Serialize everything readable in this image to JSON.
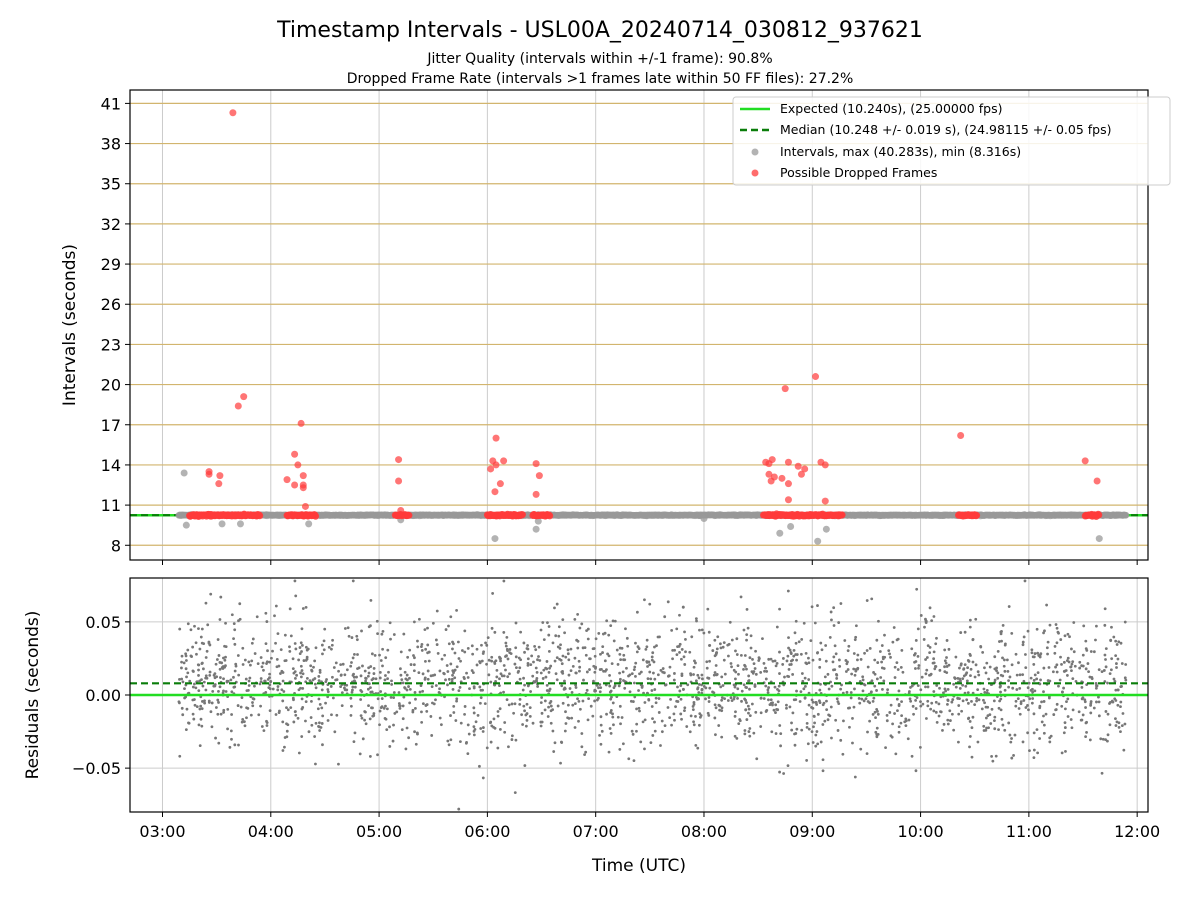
{
  "chart_data": [
    {
      "type": "scatter",
      "title": "Timestamp Intervals - USL00A_20240714_030812_937621",
      "subtitle_lines": [
        "Jitter Quality (intervals within +/-1 frame): 90.8%",
        "Dropped Frame Rate (intervals >1 frames late within 50 FF files): 27.2%"
      ],
      "xlabel": "",
      "ylabel": "Intervals (seconds)",
      "xlim_hours": [
        2.7,
        12.1
      ],
      "ylim": [
        6.9,
        42.0
      ],
      "yticks": [
        8,
        11,
        14,
        17,
        20,
        23,
        26,
        29,
        32,
        35,
        38,
        41
      ],
      "ytick_labels": [
        "8",
        "11",
        "14",
        "17",
        "20",
        "23",
        "26",
        "29",
        "32",
        "35",
        "38",
        "41"
      ],
      "grid": true,
      "legend_position": "top-right",
      "legend": [
        {
          "label": "Expected (10.240s), (25.00000 fps)",
          "kind": "line",
          "color": "#22dd22"
        },
        {
          "label": "Median (10.248 +/- 0.019 s), (24.98115 +/- 0.05 fps)",
          "kind": "dashed-line",
          "color": "#0a7d0a"
        },
        {
          "label": "Intervals, max (40.283s), min (8.316s)",
          "kind": "marker",
          "color": "#999999"
        },
        {
          "label": "Possible Dropped Frames",
          "kind": "marker",
          "color": "#ff3b3b"
        }
      ],
      "expected_value": 10.24,
      "median_value": 10.248,
      "series": [
        {
          "name": "Intervals, max (40.283s), min (8.316s)",
          "color": "#999999",
          "points": [
            [
              3.2,
              13.4
            ],
            [
              3.22,
              9.5
            ],
            [
              3.55,
              9.6
            ],
            [
              3.72,
              9.6
            ],
            [
              4.35,
              9.6
            ],
            [
              5.2,
              9.9
            ],
            [
              6.07,
              8.5
            ],
            [
              6.45,
              9.2
            ],
            [
              6.47,
              9.8
            ],
            [
              8.0,
              10.0
            ],
            [
              8.7,
              8.9
            ],
            [
              8.8,
              9.4
            ],
            [
              9.05,
              8.3
            ],
            [
              9.13,
              9.2
            ],
            [
              11.65,
              8.5
            ]
          ],
          "clusters": [
            [
              3.15,
              11.9
            ]
          ]
        },
        {
          "name": "Possible Dropped Frames",
          "color": "#ff3b3b",
          "points": [
            [
              3.65,
              40.3
            ],
            [
              3.75,
              19.1
            ],
            [
              3.7,
              18.4
            ],
            [
              3.43,
              13.5
            ],
            [
              3.43,
              13.3
            ],
            [
              3.53,
              13.2
            ],
            [
              3.52,
              12.6
            ],
            [
              4.28,
              17.1
            ],
            [
              4.22,
              14.8
            ],
            [
              4.25,
              14.0
            ],
            [
              4.3,
              13.2
            ],
            [
              4.3,
              12.5
            ],
            [
              4.3,
              12.3
            ],
            [
              4.15,
              12.9
            ],
            [
              4.22,
              12.5
            ],
            [
              4.32,
              10.9
            ],
            [
              5.18,
              14.4
            ],
            [
              5.18,
              12.8
            ],
            [
              5.2,
              10.6
            ],
            [
              6.08,
              16.0
            ],
            [
              6.05,
              14.3
            ],
            [
              6.03,
              13.7
            ],
            [
              6.08,
              14.0
            ],
            [
              6.15,
              14.3
            ],
            [
              6.12,
              12.6
            ],
            [
              6.07,
              12.0
            ],
            [
              6.45,
              14.1
            ],
            [
              6.48,
              13.2
            ],
            [
              6.45,
              11.8
            ],
            [
              8.57,
              14.2
            ],
            [
              8.6,
              14.1
            ],
            [
              8.63,
              14.4
            ],
            [
              8.6,
              13.3
            ],
            [
              8.65,
              13.1
            ],
            [
              8.62,
              12.8
            ],
            [
              8.72,
              13.0
            ],
            [
              8.75,
              19.7
            ],
            [
              8.78,
              14.2
            ],
            [
              8.78,
              12.6
            ],
            [
              8.78,
              11.4
            ],
            [
              8.87,
              13.9
            ],
            [
              8.9,
              13.3
            ],
            [
              8.93,
              13.7
            ],
            [
              9.03,
              20.6
            ],
            [
              9.08,
              14.2
            ],
            [
              9.12,
              14.0
            ],
            [
              9.12,
              11.3
            ],
            [
              10.37,
              16.2
            ],
            [
              11.52,
              14.3
            ],
            [
              11.63,
              12.8
            ]
          ],
          "clusters": [
            [
              3.25,
              3.9
            ],
            [
              4.15,
              4.42
            ],
            [
              5.15,
              5.28
            ],
            [
              6.0,
              6.33
            ],
            [
              6.42,
              6.58
            ],
            [
              8.55,
              9.28
            ],
            [
              10.35,
              10.52
            ],
            [
              11.52,
              11.65
            ]
          ]
        }
      ]
    },
    {
      "type": "scatter",
      "xlabel": "Time (UTC)",
      "ylabel": "Residuals (seconds)",
      "xlim_hours": [
        2.7,
        12.1
      ],
      "ylim": [
        -0.08,
        0.08
      ],
      "yticks": [
        -0.05,
        0.0,
        0.05
      ],
      "ytick_labels": [
        "−0.05",
        "0.00",
        "0.05"
      ],
      "xticks_hours": [
        3,
        4,
        5,
        6,
        7,
        8,
        9,
        10,
        11,
        12
      ],
      "xtick_labels": [
        "03:00",
        "04:00",
        "05:00",
        "06:00",
        "07:00",
        "08:00",
        "09:00",
        "10:00",
        "11:00",
        "12:00"
      ],
      "grid": true,
      "zero_line_color": "#22dd22",
      "median_residual": 0.008,
      "series": [
        {
          "name": "",
          "color": "#777777",
          "x_range_hours": [
            3.15,
            11.9
          ],
          "approx_count": 2400,
          "mean": 0.008,
          "spread": 0.022,
          "bounds": [
            -0.078,
            0.078
          ]
        }
      ]
    }
  ]
}
